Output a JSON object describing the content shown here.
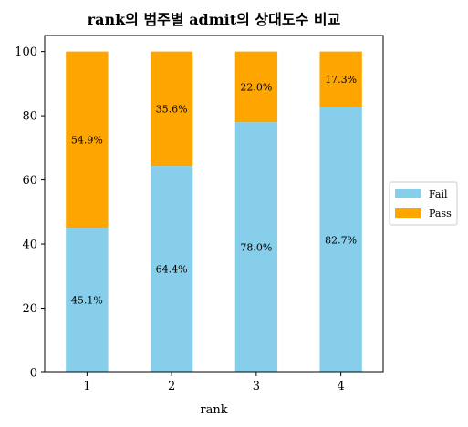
{
  "chart_data": {
    "type": "bar",
    "stacked": true,
    "title": "rank의 범주별 admit의 상대도수 비교",
    "xlabel": "rank",
    "ylabel": "",
    "categories": [
      "1",
      "2",
      "3",
      "4"
    ],
    "ylim": [
      0,
      105
    ],
    "yticks": [
      0,
      20,
      40,
      60,
      80,
      100
    ],
    "series": [
      {
        "name": "Fail",
        "color": "#87CEEB",
        "values": [
          45.1,
          64.4,
          78.0,
          82.7
        ],
        "labels": [
          "45.1%",
          "64.4%",
          "78.0%",
          "82.7%"
        ]
      },
      {
        "name": "Pass",
        "color": "#FFA500",
        "values": [
          54.9,
          35.6,
          22.0,
          17.3
        ],
        "labels": [
          "54.9%",
          "35.6%",
          "22.0%",
          "17.3%"
        ]
      }
    ],
    "legend_position": "center-right",
    "grid": false
  }
}
